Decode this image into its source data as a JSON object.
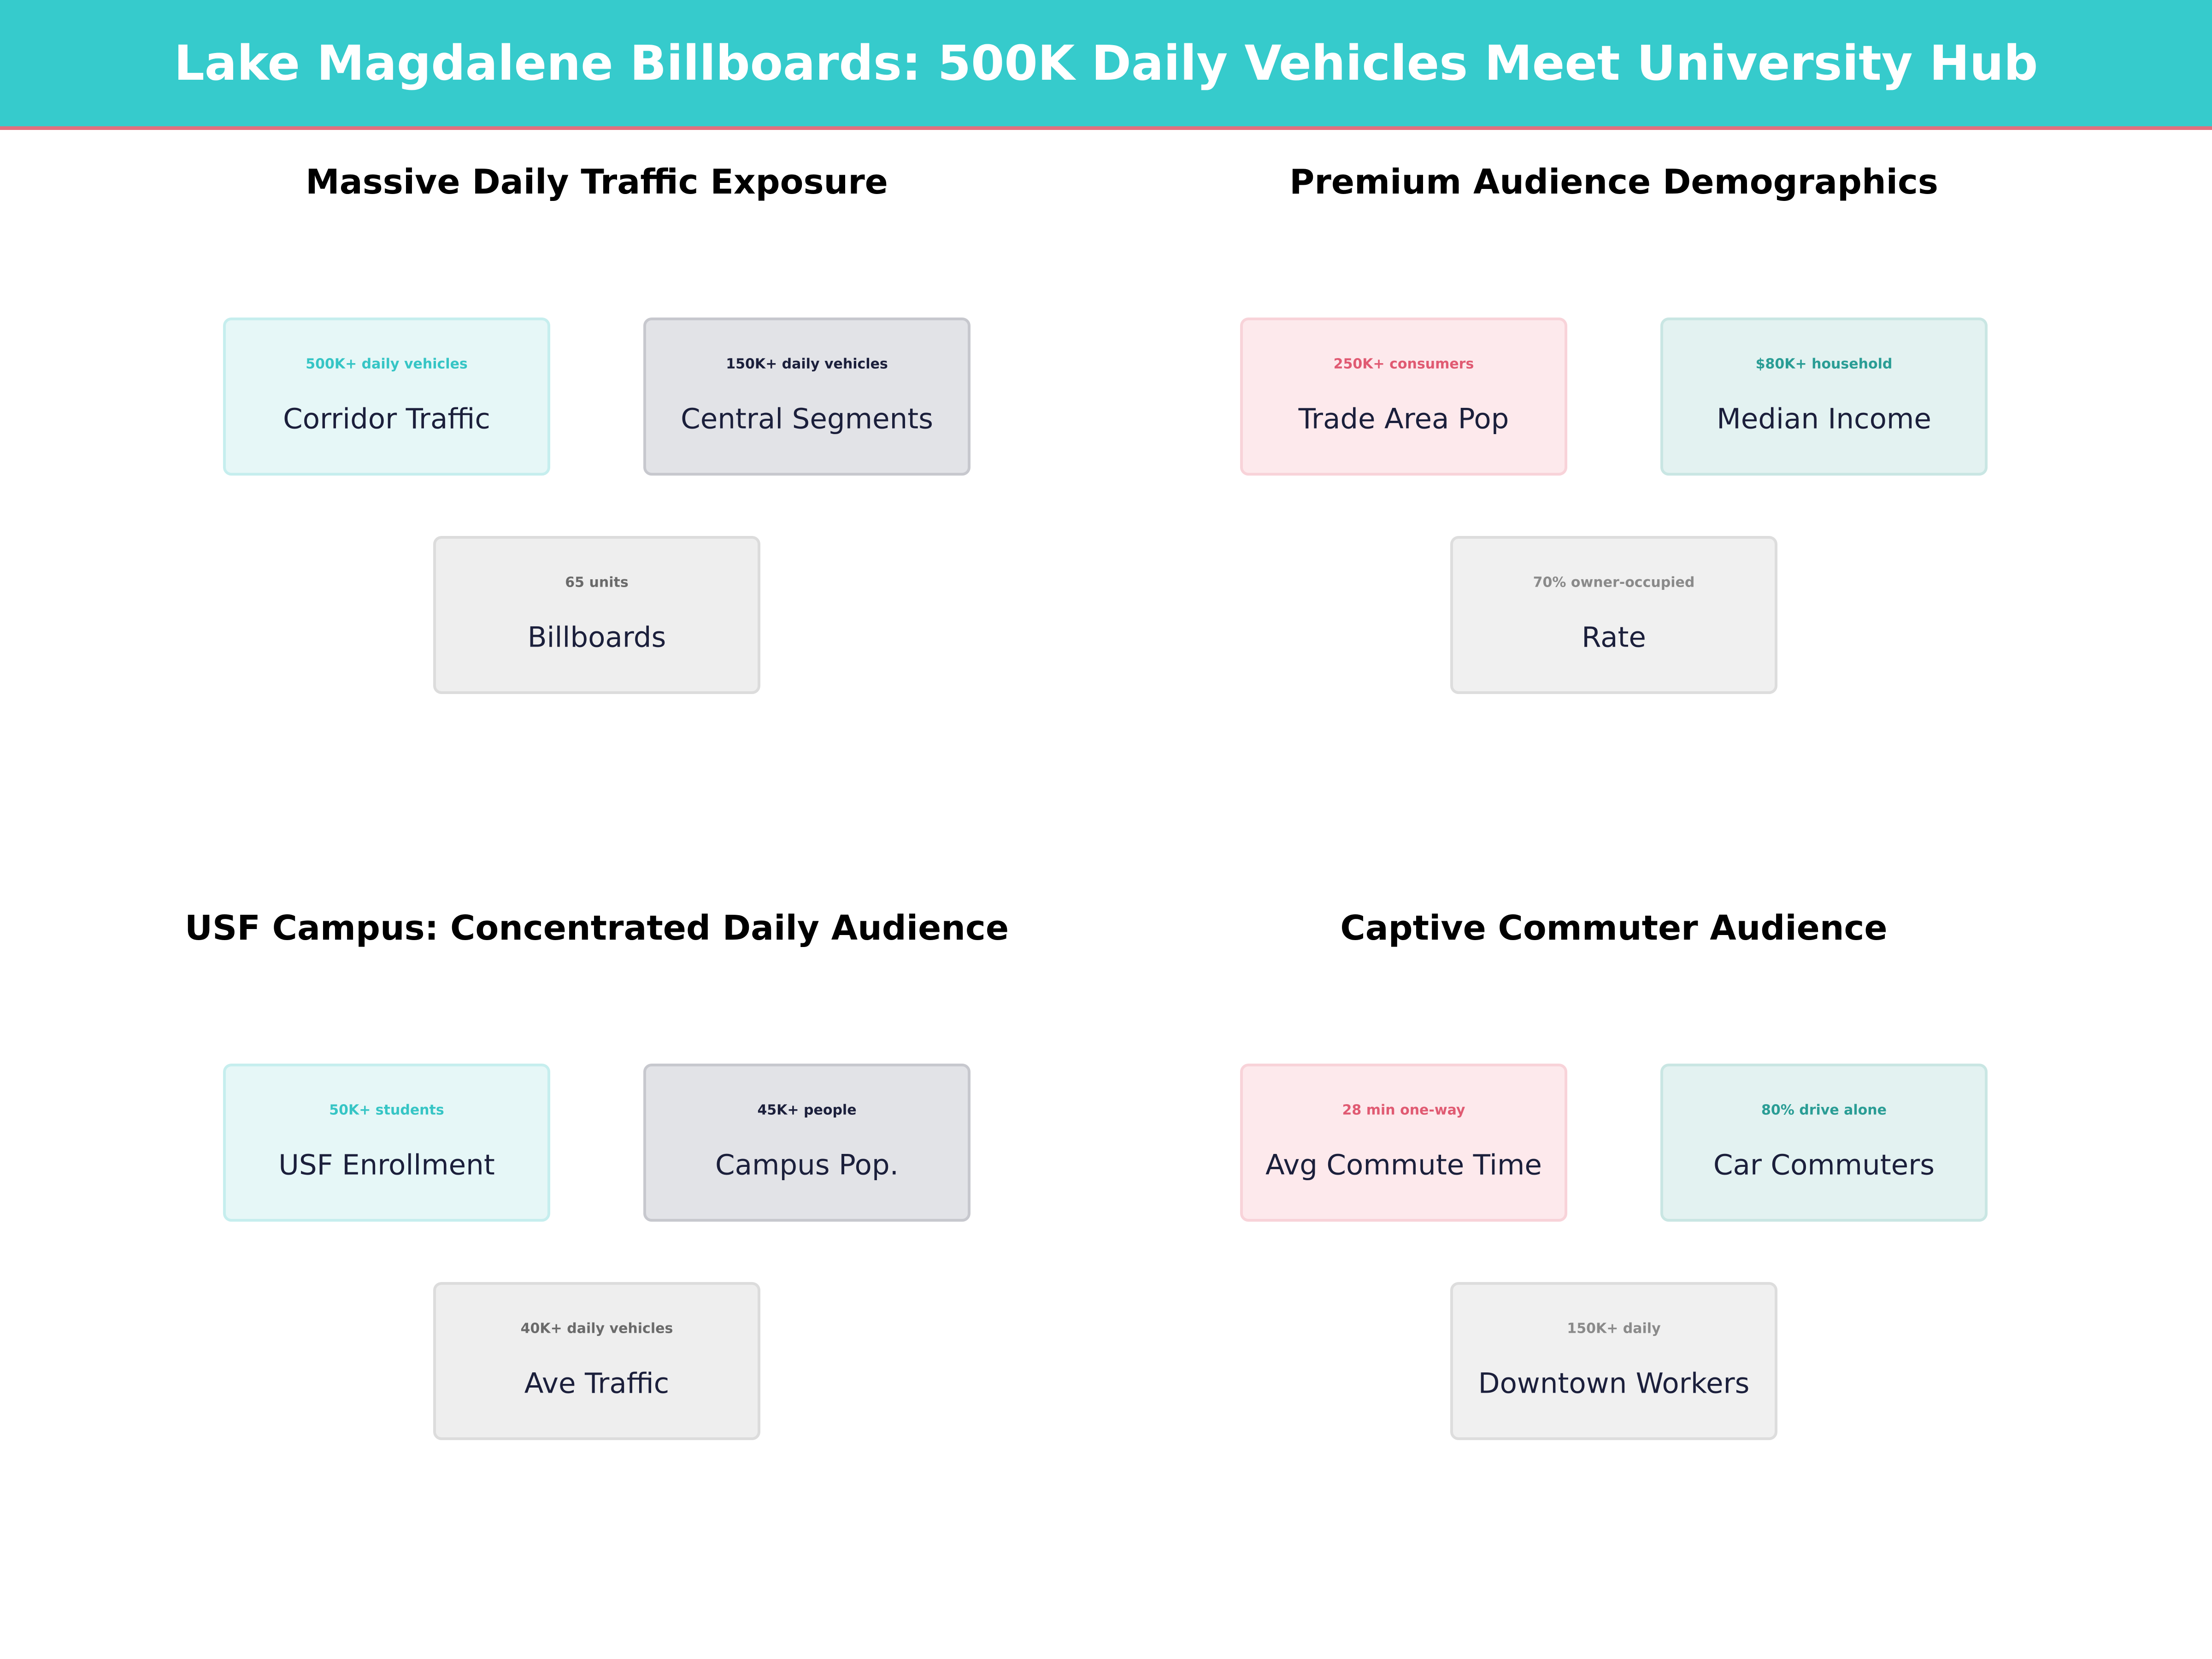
{
  "header": {
    "title": "Lake Magdalene Billboards: 500K Daily Vehicles Meet University Hub"
  },
  "panels": [
    {
      "title": "Massive Daily Traffic Exposure",
      "cards": [
        {
          "value": "500K+ daily vehicles",
          "label": "Corridor Traffic"
        },
        {
          "value": "150K+ daily vehicles",
          "label": "Central Segments"
        },
        {
          "value": "65 units",
          "label": "Billboards"
        }
      ]
    },
    {
      "title": "Premium Audience Demographics",
      "cards": [
        {
          "value": "250K+ consumers",
          "label": "Trade Area Pop"
        },
        {
          "value": "$80K+ household",
          "label": "Median Income"
        },
        {
          "value": "70% owner-occupied",
          "label": "Rate"
        }
      ]
    },
    {
      "title": "USF Campus: Concentrated Daily Audience",
      "cards": [
        {
          "value": "50K+ students",
          "label": "USF Enrollment"
        },
        {
          "value": "45K+ people",
          "label": "Campus Pop."
        },
        {
          "value": "40K+ daily vehicles",
          "label": "Ave Traffic"
        }
      ]
    },
    {
      "title": "Captive Commuter Audience",
      "cards": [
        {
          "value": "28 min one-way",
          "label": "Avg Commute Time"
        },
        {
          "value": "80% drive alone",
          "label": "Car Commuters"
        },
        {
          "value": "150K+ daily",
          "label": "Downtown Workers"
        }
      ]
    }
  ]
}
